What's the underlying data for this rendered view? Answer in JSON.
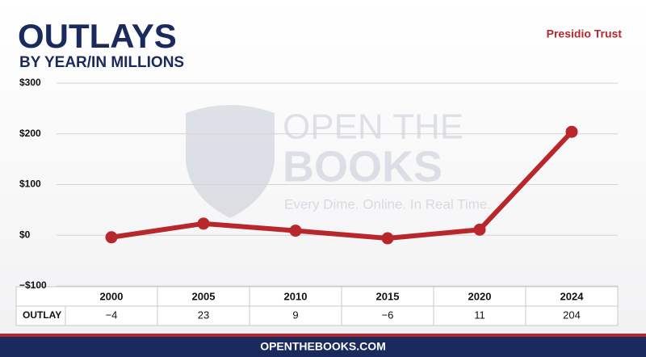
{
  "chart_data": {
    "type": "line",
    "title": "OUTLAYS",
    "subtitle": "BY YEAR/IN MILLIONS",
    "agency": "Presidio Trust",
    "watermark": [
      "OPEN THE",
      "BOOKS",
      "Every Dime. Online. In Real Time."
    ],
    "footer": "OPENTHEBOOKS.COM",
    "row_label": "OUTLAY",
    "categories": [
      "2000",
      "2005",
      "2010",
      "2015",
      "2020",
      "2024"
    ],
    "values": [
      -4,
      23,
      9,
      -6,
      11,
      204
    ],
    "value_labels": [
      "−4",
      "23",
      "9",
      "−6",
      "11",
      "204"
    ],
    "color": "#b8272b",
    "ylim": [
      -100,
      300
    ],
    "yticks": [
      {
        "value": -100,
        "label": "−$100"
      },
      {
        "value": 0,
        "label": "$0"
      },
      {
        "value": 100,
        "label": "$100"
      },
      {
        "value": 200,
        "label": "$200"
      },
      {
        "value": 300,
        "label": "$300"
      }
    ],
    "grid": true
  }
}
